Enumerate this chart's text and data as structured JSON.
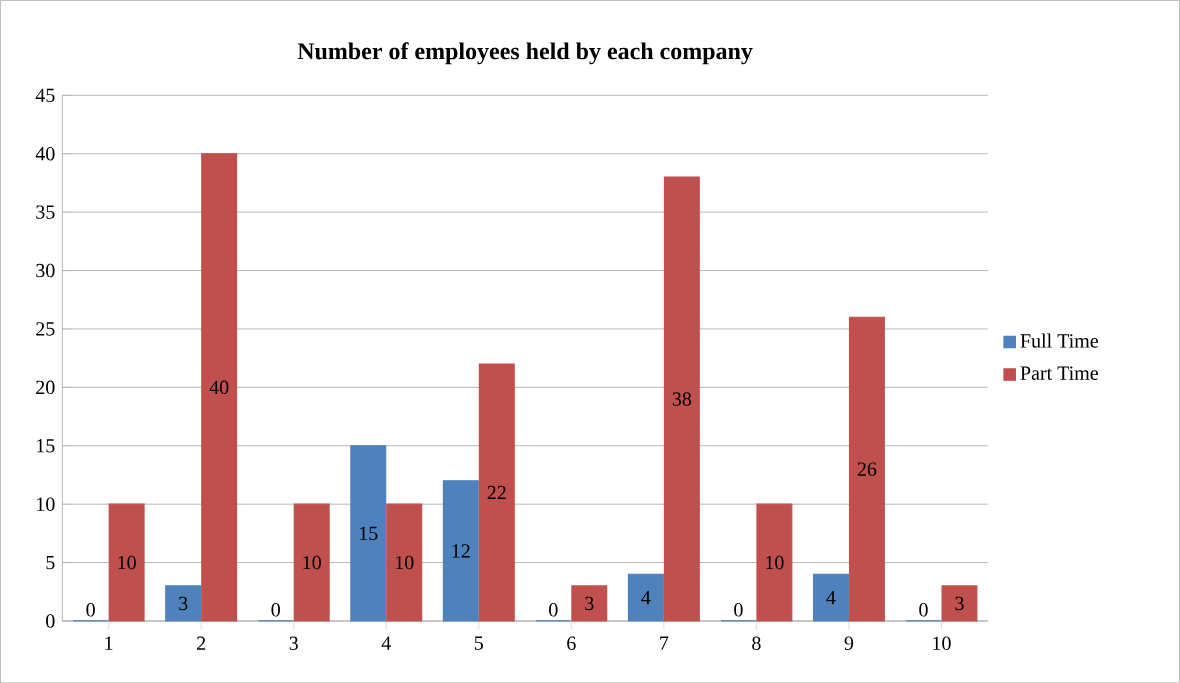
{
  "chart_data": {
    "type": "bar",
    "title": "Number of employees held by each company",
    "categories": [
      "1",
      "2",
      "3",
      "4",
      "5",
      "6",
      "7",
      "8",
      "9",
      "10"
    ],
    "series": [
      {
        "name": "Full Time",
        "color": "#4f81bd",
        "values": [
          0,
          3,
          0,
          15,
          12,
          0,
          4,
          0,
          4,
          0
        ]
      },
      {
        "name": "Part Time",
        "color": "#c0504d",
        "values": [
          10,
          40,
          10,
          10,
          22,
          3,
          38,
          10,
          26,
          3
        ]
      }
    ],
    "ylim": [
      0,
      45
    ],
    "yticks": [
      0,
      5,
      10,
      15,
      20,
      25,
      30,
      35,
      40,
      45
    ],
    "grid": "y",
    "legend": "right",
    "data_labels": true
  }
}
